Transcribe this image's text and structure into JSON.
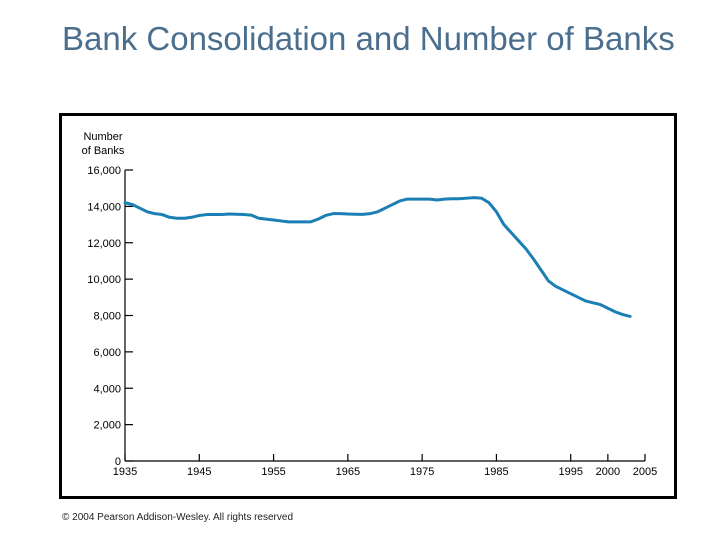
{
  "slide": {
    "title": "Bank Consolidation and Number of Banks",
    "footer": "© 2004 Pearson Addison-Wesley. All rights reserved"
  },
  "colors": {
    "title": "#4a6e8e",
    "line": "#1a7fb5",
    "axis": "#000000",
    "frame": "#000000"
  },
  "chart_data": {
    "type": "line",
    "title": "",
    "ylabel": "Number of Banks",
    "xlabel": "",
    "xlim": [
      1935,
      2005
    ],
    "ylim": [
      0,
      16000
    ],
    "x_ticks": [
      1935,
      1945,
      1955,
      1965,
      1975,
      1985,
      1995,
      2000,
      2005
    ],
    "y_ticks": [
      0,
      2000,
      4000,
      6000,
      8000,
      10000,
      12000,
      14000,
      16000
    ],
    "x_tick_labels": [
      "1935",
      "1945",
      "1955",
      "1965",
      "1975",
      "1985",
      "1995",
      "2000",
      "2005"
    ],
    "y_tick_labels": [
      "0",
      "2,000",
      "4,000",
      "6,000",
      "8,000",
      "10,000",
      "12,000",
      "14,000",
      "16,000"
    ],
    "grid": false,
    "series": [
      {
        "x": [
          1935,
          1936,
          1937,
          1938,
          1939,
          1940,
          1941,
          1942,
          1943,
          1944,
          1945,
          1946,
          1947,
          1948,
          1949,
          1950,
          1951,
          1952,
          1953,
          1954,
          1955,
          1956,
          1957,
          1958,
          1959,
          1960,
          1961,
          1962,
          1963,
          1964,
          1965,
          1966,
          1967,
          1968,
          1969,
          1970,
          1971,
          1972,
          1973,
          1974,
          1975,
          1976,
          1977,
          1978,
          1979,
          1980,
          1981,
          1982,
          1983,
          1984,
          1985,
          1986,
          1987,
          1988,
          1989,
          1990,
          1991,
          1992,
          1993,
          1994,
          1995,
          1996,
          1997,
          1998,
          1999,
          2000,
          2001,
          2002,
          2003
        ],
        "y": [
          14200,
          14100,
          13900,
          13700,
          13600,
          13550,
          13400,
          13350,
          13350,
          13400,
          13500,
          13550,
          13550,
          13550,
          13580,
          13570,
          13550,
          13520,
          13350,
          13300,
          13250,
          13200,
          13150,
          13150,
          13150,
          13150,
          13300,
          13500,
          13600,
          13600,
          13580,
          13570,
          13560,
          13600,
          13700,
          13900,
          14100,
          14300,
          14400,
          14400,
          14400,
          14400,
          14350,
          14400,
          14420,
          14420,
          14450,
          14480,
          14450,
          14200,
          13700,
          13000,
          12550,
          12100,
          11650,
          11100,
          10500,
          9900,
          9600,
          9400,
          9200,
          9000,
          8800,
          8700,
          8600,
          8400,
          8200,
          8050,
          7950
        ]
      }
    ]
  }
}
